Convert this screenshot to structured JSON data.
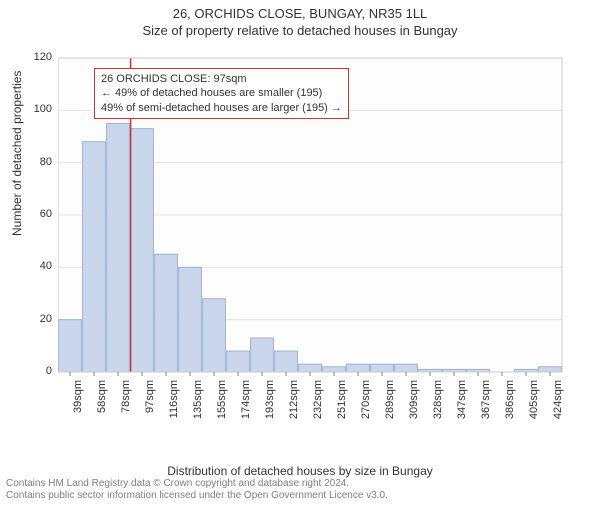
{
  "title": "26, ORCHIDS CLOSE, BUNGAY, NR35 1LL",
  "subtitle": "Size of property relative to detached houses in Bungay",
  "ylabel": "Number of detached properties",
  "xlabel": "Distribution of detached houses by size in Bungay",
  "footer_line1": "Contains HM Land Registry data © Crown copyright and database right 2024.",
  "footer_line2": "Contains public sector information licensed under the Open Government Licence v3.0.",
  "annotation": {
    "line1": "26 ORCHIDS CLOSE: 97sqm",
    "line2": "← 49% of detached houses are smaller (195)",
    "line3": "49% of semi-detached houses are larger (195) →"
  },
  "chart": {
    "type": "bar",
    "categories": [
      "39sqm",
      "58sqm",
      "78sqm",
      "97sqm",
      "116sqm",
      "135sqm",
      "155sqm",
      "174sqm",
      "193sqm",
      "212sqm",
      "232sqm",
      "251sqm",
      "270sqm",
      "289sqm",
      "309sqm",
      "328sqm",
      "347sqm",
      "367sqm",
      "386sqm",
      "405sqm",
      "424sqm"
    ],
    "values": [
      20,
      88,
      95,
      93,
      45,
      40,
      28,
      8,
      13,
      8,
      3,
      2,
      3,
      3,
      3,
      1,
      1,
      1,
      0,
      1,
      2
    ],
    "ylim": [
      0,
      120
    ],
    "yticks": [
      0,
      20,
      40,
      60,
      80,
      100,
      120
    ],
    "bar_fill": "#c9d6ec",
    "bar_stroke": "#9db3d4",
    "plot_bg": "#fdfdfd",
    "plot_border": "#cccccc",
    "grid_color": "#e6e6e6",
    "marker_line_color": "#cc3333",
    "marker_line_x_category_index": 3,
    "annotation_border": "#cc3333",
    "bar_width_ratio": 0.95,
    "title_fontsize": 13,
    "label_fontsize": 12,
    "tick_fontsize": 11,
    "footer_fontsize": 10,
    "footer_color": "#808080"
  }
}
